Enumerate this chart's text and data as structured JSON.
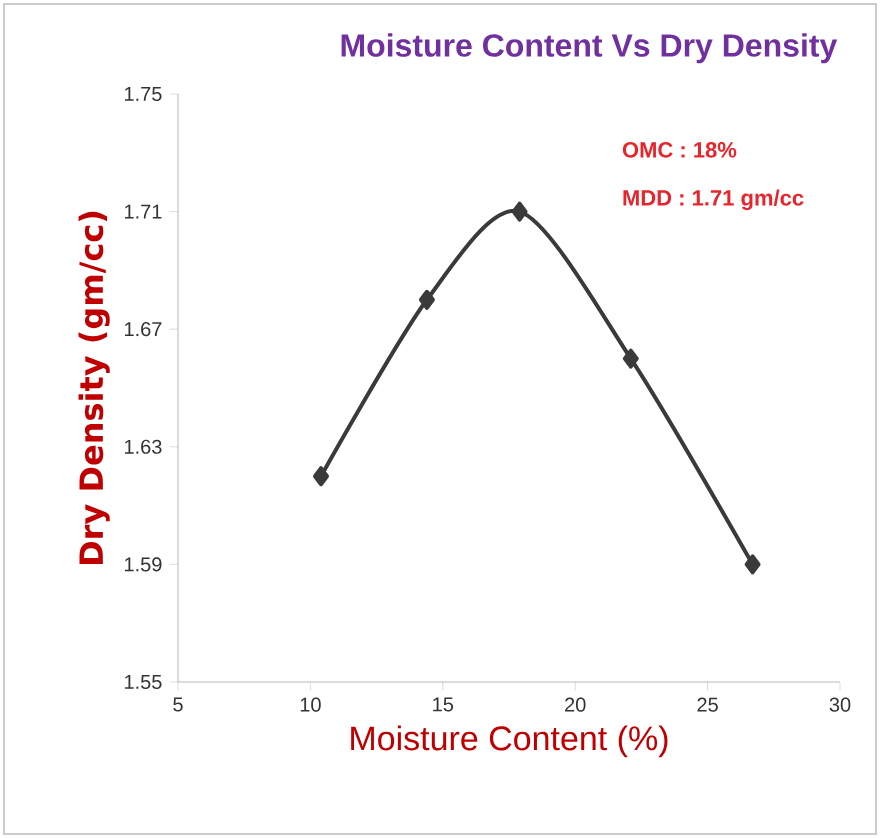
{
  "chart_data": {
    "type": "line",
    "title": "Moisture Content Vs Dry Density",
    "xlabel": "Moisture Content (%)",
    "ylabel": "Dry Density (gm/cc)",
    "annotations": [
      "OMC : 18%",
      "MDD : 1.71 gm/cc"
    ],
    "x": [
      10.4,
      14.4,
      17.9,
      22.1,
      26.7
    ],
    "series": [
      {
        "color": "#3a3a3a",
        "values": [
          1.62,
          1.68,
          1.71,
          1.66,
          1.59
        ]
      }
    ],
    "xlim": [
      5,
      30
    ],
    "xticks": [
      5,
      10,
      15,
      20,
      25,
      30
    ],
    "ylim": [
      1.55,
      1.75
    ],
    "yticks": [
      1.55,
      1.59,
      1.63,
      1.67,
      1.71,
      1.75
    ],
    "marker": "diamond",
    "line_style": "solid"
  }
}
